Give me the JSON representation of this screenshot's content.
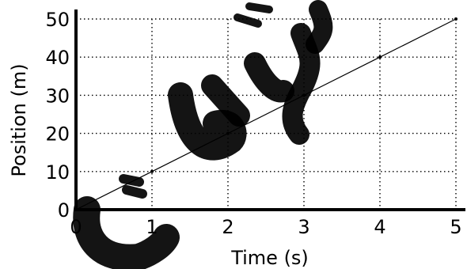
{
  "chart_data": {
    "type": "line",
    "title": "",
    "xlabel": "Time (s)",
    "ylabel": "Position (m)",
    "xlim": [
      0,
      5
    ],
    "ylim": [
      0,
      50
    ],
    "xticks": [
      "0",
      "1",
      "2",
      "3",
      "4",
      "5"
    ],
    "yticks": [
      "0",
      "10",
      "20",
      "30",
      "40",
      "50"
    ],
    "grid": true,
    "series": [
      {
        "x": [
          0,
          1,
          2,
          3,
          4,
          5
        ],
        "y": [
          0,
          10,
          20,
          30,
          40,
          50
        ]
      }
    ]
  },
  "colors": {
    "background": "#ffffff",
    "line": "#000000",
    "grid": "#000000"
  }
}
